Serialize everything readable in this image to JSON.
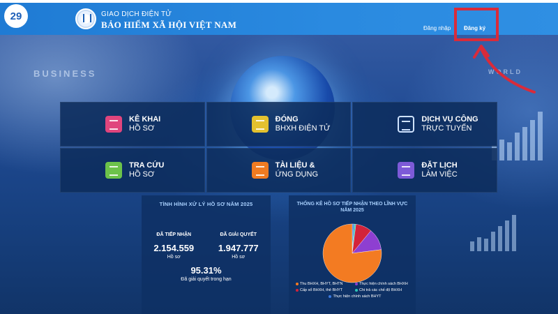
{
  "site_badge": "29",
  "header": {
    "brand_top": "GIAO DỊCH ĐIỆN TỬ",
    "brand_main": "BẢO HIỂM XÃ HỘI VIỆT NAM",
    "login_label": "Đăng nhập",
    "register_label": "Đăng ký"
  },
  "background": {
    "business_text": "BUSINESS",
    "world_text": "WORLD"
  },
  "services": [
    {
      "line1": "KÊ KHAI",
      "line2": "HỒ SƠ",
      "icon": "document-edit-icon",
      "color": "#e0457d"
    },
    {
      "line1": "ĐÓNG",
      "line2": "BHXH ĐIỆN TỬ",
      "icon": "payment-icon",
      "color": "#e3c12f"
    },
    {
      "line1": "DỊCH VỤ CÔNG",
      "line2": "TRỰC TUYẾN",
      "icon": "globe-icon",
      "color": "#cfe3ff"
    },
    {
      "line1": "TRA CỨU",
      "line2": "HỒ SƠ",
      "icon": "monitor-search-icon",
      "color": "#6cc24a"
    },
    {
      "line1": "TÀI LIỆU &",
      "line2": "ỨNG DỤNG",
      "icon": "book-play-icon",
      "color": "#ef7b22"
    },
    {
      "line1": "ĐẶT LỊCH",
      "line2": "LÀM VIỆC",
      "icon": "calendar-icon",
      "color": "#7d5ad8"
    }
  ],
  "stats": {
    "title": "TÌNH HÌNH XỬ LÝ HỒ SƠ NĂM 2025",
    "received_label": "ĐÃ TIẾP NHẬN",
    "received_value": "2.154.559",
    "received_unit": "Hồ sơ",
    "resolved_label": "ĐÃ GIẢI QUYẾT",
    "resolved_value": "1.947.777",
    "resolved_unit": "Hồ sơ",
    "on_time_percent": "95.31%",
    "on_time_label": "Đã giải quyết trong hạn"
  },
  "pie": {
    "title": "THỐNG KÊ HỒ SƠ TIẾP NHẬN THEO LĨNH VỰC NĂM 2025",
    "legend": [
      "Thu BHXH, BHYT, BHTN",
      "Thực hiện chính sách BHXH",
      "Cấp sổ BHXH, thẻ BHYT",
      "Chi trả các chế độ BHXH",
      "Thực hiện chính sách BHYT"
    ]
  },
  "chart_data": {
    "type": "pie",
    "title": "THỐNG KÊ HỒ SƠ TIẾP NHẬN THEO LĨNH VỰC NĂM 2025",
    "categories": [
      "Thu BHXH, BHYT, BHTN",
      "Thực hiện chính sách BHXH",
      "Cấp sổ BHXH, thẻ BHYT",
      "Chi trả các chế độ BHXH",
      "Thực hiện chính sách BHYT"
    ],
    "values": [
      77,
      12,
      9,
      1,
      1
    ],
    "colors": [
      "#f37b22",
      "#8e3fd1",
      "#d3233a",
      "#2ec4b6",
      "#3a79e0"
    ],
    "legend_position": "bottom"
  }
}
